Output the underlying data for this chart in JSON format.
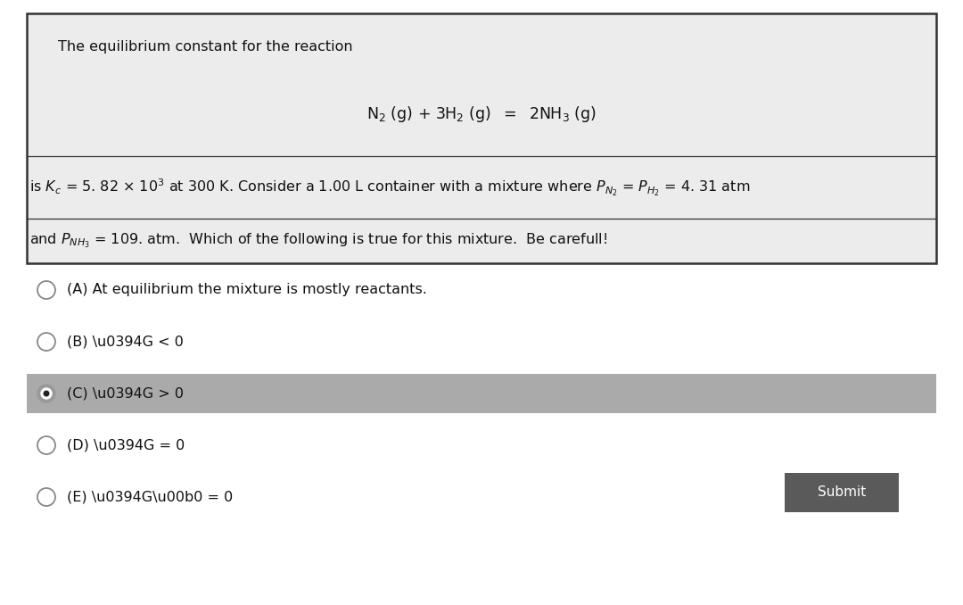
{
  "bg_color": "#ffffff",
  "box_bg_color": "#ececec",
  "box_border_color": "#333333",
  "highlight_color": "#aaaaaa",
  "submit_bg": "#5a5a5a",
  "submit_text": "Submit",
  "submit_text_color": "#ffffff",
  "font_size_body": 11.5,
  "font_size_reaction": 12.5,
  "font_size_options": 11.5,
  "options": [
    {
      "label": "(A) At equilibrium the mixture is mostly reactants.",
      "selected": false,
      "highlighted": false
    },
    {
      "label": "(B) \\u0394G < 0",
      "selected": false,
      "highlighted": false
    },
    {
      "label": "(C) \\u0394G > 0",
      "selected": true,
      "highlighted": true
    },
    {
      "label": "(D) \\u0394G = 0",
      "selected": false,
      "highlighted": false
    },
    {
      "label": "(E) \\u0394G\\u00b0 = 0",
      "selected": false,
      "highlighted": false
    }
  ]
}
